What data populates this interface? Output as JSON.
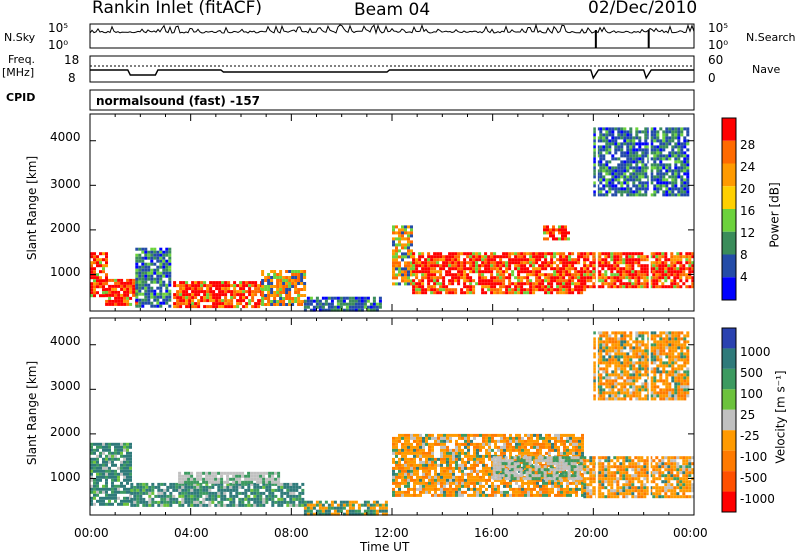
{
  "header": {
    "station": "Rankin Inlet (fitACF)",
    "beam": "Beam 04",
    "date": "02/Dec/2010",
    "mode": "normalsound (fast) -157"
  },
  "panel_labels": {
    "nsky": "N.Sky",
    "nsearch": "N.Search",
    "freq": "Freq.",
    "freq_unit": "[MHz]",
    "nave": "Nave",
    "cpid": "CPID",
    "nsky_hi": "10^5",
    "nsky_lo": "10^0",
    "freq_hi": "18",
    "freq_lo": "8",
    "nave_hi": "60",
    "nave_lo": "0"
  },
  "axes": {
    "ylabel": "Slant Range [km]",
    "xlabel": "Time UT",
    "yticks": [
      "4000",
      "3000",
      "2000",
      "1000"
    ],
    "xticks": [
      "00:00",
      "04:00",
      "08:00",
      "12:00",
      "16:00",
      "20:00",
      "00:00"
    ]
  },
  "colorbars": {
    "power": {
      "label": "Power [dB]",
      "ticks": [
        "28",
        "24",
        "20",
        "16",
        "12",
        "8",
        "4"
      ],
      "colors": [
        "#ff0000",
        "#ff6a00",
        "#ff9a00",
        "#ffd000",
        "#6cd23c",
        "#3a8c5a",
        "#244ca8",
        "#0000ff"
      ]
    },
    "velocity": {
      "label": "Velocity [m s⁻¹]",
      "ticks": [
        "1000",
        "500",
        "100",
        "25",
        "-25",
        "-100",
        "-500",
        "-1000"
      ],
      "colors": [
        "#2a42b0",
        "#2f7a7a",
        "#3c9a60",
        "#6cc23c",
        "#c0c0c0",
        "#ff9a00",
        "#ff7a00",
        "#ff5000",
        "#ff0000"
      ]
    }
  },
  "chart_data": [
    {
      "type": "heatmap",
      "name_id": "power",
      "x_range_hours": [
        0,
        24
      ],
      "ylim_km": [
        180,
        4600
      ],
      "regions": [
        {
          "t0": 0.0,
          "t1": 0.6,
          "r0": 500,
          "r1": 1500,
          "level": "high"
        },
        {
          "t0": 0.6,
          "t1": 1.8,
          "r0": 300,
          "r1": 900,
          "level": "high"
        },
        {
          "t0": 1.8,
          "t1": 3.2,
          "r0": 300,
          "r1": 1600,
          "level": "low"
        },
        {
          "t0": 3.3,
          "t1": 6.8,
          "r0": 300,
          "r1": 850,
          "level": "high"
        },
        {
          "t0": 6.8,
          "t1": 8.5,
          "r0": 300,
          "r1": 1100,
          "level": "mid"
        },
        {
          "t0": 8.5,
          "t1": 11.5,
          "r0": 200,
          "r1": 500,
          "level": "low"
        },
        {
          "t0": 12.0,
          "t1": 12.8,
          "r0": 800,
          "r1": 2100,
          "level": "mid"
        },
        {
          "t0": 12.8,
          "t1": 19.6,
          "r0": 600,
          "r1": 1500,
          "level": "high"
        },
        {
          "t0": 18.0,
          "t1": 19.0,
          "r0": 1800,
          "r1": 2100,
          "level": "high"
        },
        {
          "t0": 19.6,
          "t1": 24.0,
          "r0": 700,
          "r1": 1500,
          "level": "high"
        },
        {
          "t0": 20.0,
          "t1": 23.8,
          "r0": 2800,
          "r1": 4300,
          "level": "low"
        }
      ]
    },
    {
      "type": "heatmap",
      "name_id": "velocity",
      "x_range_hours": [
        0,
        24
      ],
      "ylim_km": [
        180,
        4600
      ],
      "regions": [
        {
          "t0": 0.0,
          "t1": 1.6,
          "r0": 400,
          "r1": 1800,
          "level": "pos"
        },
        {
          "t0": 1.6,
          "t1": 8.5,
          "r0": 400,
          "r1": 900,
          "level": "pos"
        },
        {
          "t0": 3.5,
          "t1": 7.5,
          "r0": 900,
          "r1": 1150,
          "level": "zero"
        },
        {
          "t0": 8.5,
          "t1": 11.8,
          "r0": 200,
          "r1": 500,
          "level": "mixed"
        },
        {
          "t0": 12.0,
          "t1": 19.6,
          "r0": 600,
          "r1": 2000,
          "level": "neg"
        },
        {
          "t0": 16.0,
          "t1": 19.5,
          "r0": 1000,
          "r1": 1500,
          "level": "zero"
        },
        {
          "t0": 19.6,
          "t1": 24.0,
          "r0": 600,
          "r1": 1500,
          "level": "neg"
        },
        {
          "t0": 20.0,
          "t1": 23.8,
          "r0": 2800,
          "r1": 4300,
          "level": "neg"
        }
      ]
    }
  ]
}
